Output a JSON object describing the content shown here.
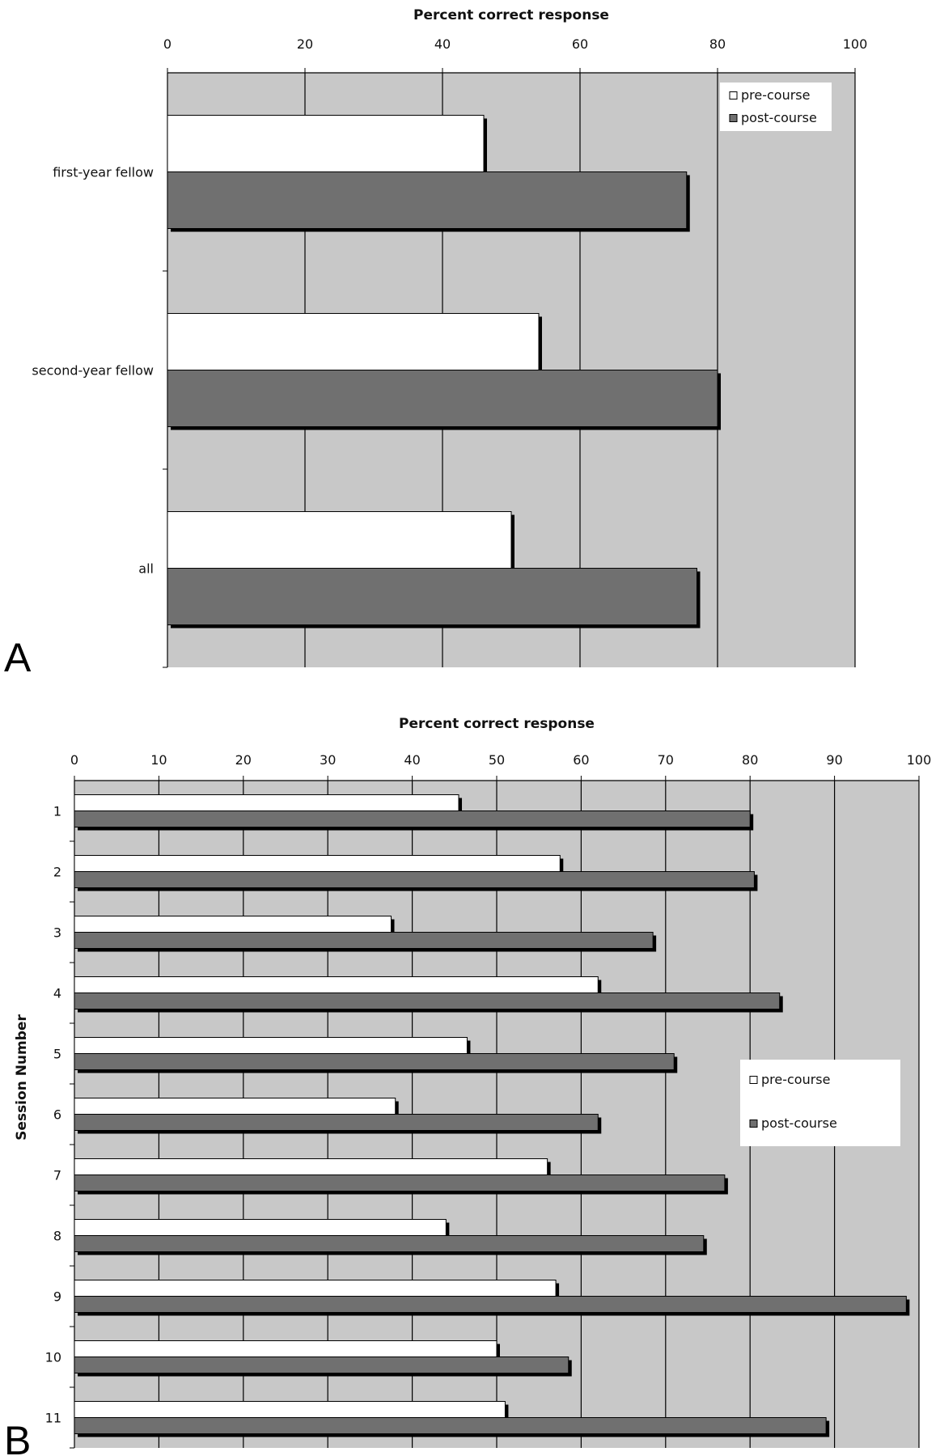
{
  "chart_data": [
    {
      "panel_label": "A",
      "type": "bar",
      "orientation": "horizontal",
      "title": "Percent correct response",
      "xlabel": "",
      "ylabel": "",
      "xlim": [
        0,
        100
      ],
      "xticks": [
        0,
        20,
        40,
        60,
        80,
        100
      ],
      "grid": true,
      "legend_position": "top-right",
      "categories": [
        "first-year fellow",
        "second-year fellow",
        "all"
      ],
      "series": [
        {
          "name": "pre-course",
          "color": "#ffffff",
          "values": [
            46,
            54,
            50
          ]
        },
        {
          "name": "post-course",
          "color": "#707070",
          "values": [
            75.5,
            80,
            77
          ]
        }
      ]
    },
    {
      "panel_label": "B",
      "type": "bar",
      "orientation": "horizontal",
      "title": "Percent correct response",
      "xlabel": "",
      "ylabel": "Session Number",
      "xlim": [
        0,
        100
      ],
      "xticks": [
        0,
        10,
        20,
        30,
        40,
        50,
        60,
        70,
        80,
        90,
        100
      ],
      "grid": true,
      "legend_position": "center-right",
      "categories": [
        "1",
        "2",
        "3",
        "4",
        "5",
        "6",
        "7",
        "8",
        "9",
        "10",
        "11"
      ],
      "series": [
        {
          "name": "pre-course",
          "color": "#ffffff",
          "values": [
            45.5,
            57.5,
            37.5,
            62,
            46.5,
            38,
            56,
            44,
            57,
            50,
            51
          ]
        },
        {
          "name": "post-course",
          "color": "#707070",
          "values": [
            80,
            80.5,
            68.5,
            83.5,
            71,
            62,
            77,
            74.5,
            98.5,
            58.5,
            89
          ]
        }
      ]
    }
  ]
}
